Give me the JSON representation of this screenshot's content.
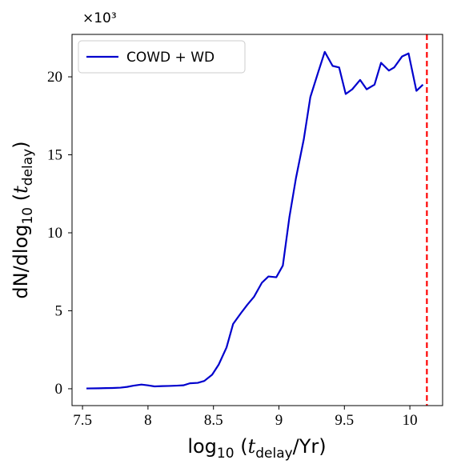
{
  "chart_data": {
    "type": "line",
    "ylabel": [
      "dN/dlog",
      "10",
      " (",
      "t",
      "delay",
      ")"
    ],
    "xlabel": [
      "log",
      "10",
      " (",
      "t",
      "delay",
      "/Yr)"
    ],
    "y_offset_label": "×10³",
    "x": [
      7.53,
      7.62,
      7.68,
      7.73,
      7.79,
      7.84,
      7.89,
      7.95,
      8.0,
      8.05,
      8.11,
      8.16,
      8.22,
      8.27,
      8.32,
      8.38,
      8.43,
      8.49,
      8.54,
      8.6,
      8.65,
      8.71,
      8.76,
      8.81,
      8.87,
      8.92,
      8.98,
      9.03,
      9.08,
      9.13,
      9.19,
      9.24,
      9.3,
      9.35,
      9.41,
      9.46,
      9.51,
      9.56,
      9.62,
      9.67,
      9.73,
      9.78,
      9.84,
      9.88,
      9.94,
      9.99,
      10.05,
      10.1
    ],
    "series": [
      {
        "name": "COWD + WD",
        "color": "#0000cd",
        "values": [
          0.02,
          0.03,
          0.04,
          0.05,
          0.07,
          0.12,
          0.2,
          0.27,
          0.22,
          0.15,
          0.17,
          0.18,
          0.2,
          0.22,
          0.35,
          0.38,
          0.5,
          0.9,
          1.55,
          2.65,
          4.15,
          4.85,
          5.4,
          5.9,
          6.8,
          7.2,
          7.15,
          7.9,
          11.0,
          13.5,
          16.0,
          18.7,
          20.3,
          21.6,
          20.7,
          20.6,
          18.9,
          19.2,
          19.8,
          19.2,
          19.5,
          20.9,
          20.4,
          20.6,
          21.3,
          21.5,
          19.1,
          19.5
        ]
      }
    ],
    "vline": {
      "x": 10.13,
      "color": "#ff0000"
    },
    "xlim": [
      7.42,
      10.25
    ],
    "ylim": [
      -1.08,
      22.72
    ],
    "xticks": [
      7.5,
      8.0,
      8.5,
      9.0,
      9.5,
      10.0
    ],
    "yticks": [
      0,
      5,
      10,
      15,
      20
    ],
    "grid": false,
    "legend": "upper left"
  }
}
